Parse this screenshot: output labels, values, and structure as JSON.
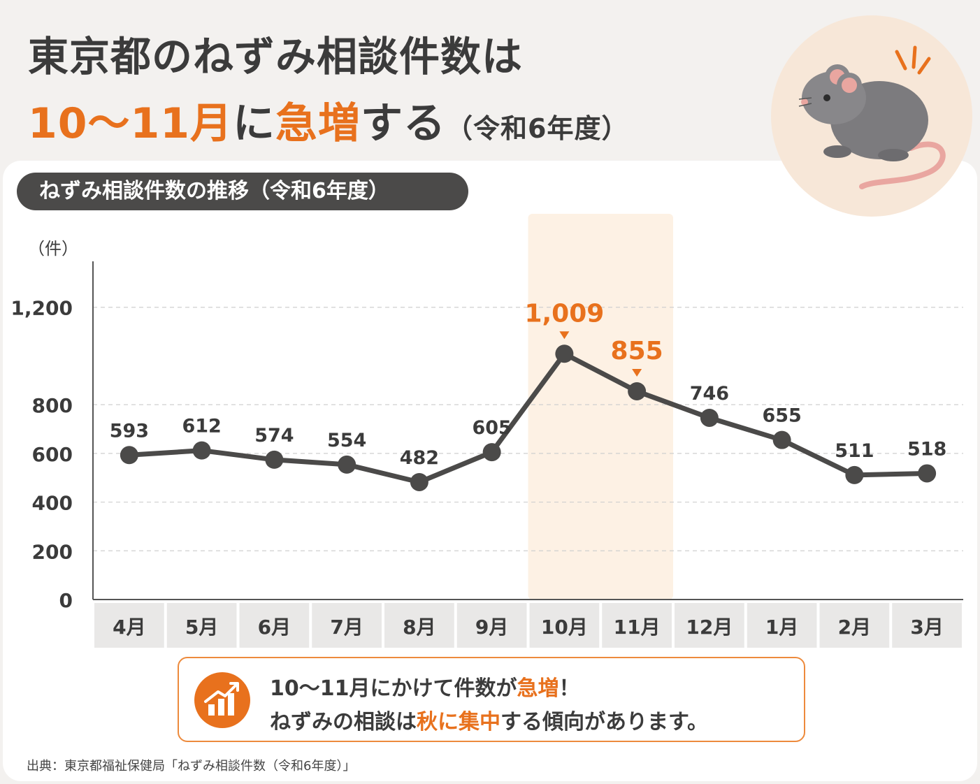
{
  "headline": {
    "line1": "東京都のねずみ相談件数は",
    "line2_accent": "10〜11月",
    "line2_mid": "に",
    "line2_accent2": "急増",
    "line2_rest": "する",
    "line2_paren": "（令和6年度）"
  },
  "colors": {
    "accent": "#e8711d",
    "line": "#4b4a49",
    "highlight": "#fdf1e4"
  },
  "chart_data": {
    "type": "line",
    "title": "ねずみ相談件数の推移（令和6年度）",
    "ylabel": "（件）",
    "xlabel": "",
    "ylim": [
      0,
      1400
    ],
    "y_ticks": [
      0,
      200,
      400,
      600,
      800,
      1200
    ],
    "y_tick_labels": [
      "0",
      "200",
      "400",
      "600",
      "800",
      "1,200"
    ],
    "categories": [
      "4月",
      "5月",
      "6月",
      "7月",
      "8月",
      "9月",
      "10月",
      "11月",
      "12月",
      "1月",
      "2月",
      "3月"
    ],
    "values": [
      593,
      612,
      574,
      554,
      482,
      605,
      1009,
      855,
      746,
      655,
      511,
      518
    ],
    "value_labels": [
      "593",
      "612",
      "574",
      "554",
      "482",
      "605",
      "1,009",
      "855",
      "746",
      "655",
      "511",
      "518"
    ],
    "highlighted_categories": [
      "10月",
      "11月"
    ],
    "grid": "horizontal-dashed"
  },
  "callout": {
    "line1_pre": "10〜11月にかけて件数が",
    "line1_acc": "急増",
    "line1_post": "！",
    "line2_pre": "ねずみの相談は",
    "line2_acc": "秋に集中",
    "line2_post": "する傾向があります。",
    "icon": "growth-chart-icon"
  },
  "mouse_icon": "mouse-illustration",
  "source": "出典：東京都福祉保健局「ねずみ相談件数（令和6年度）」"
}
